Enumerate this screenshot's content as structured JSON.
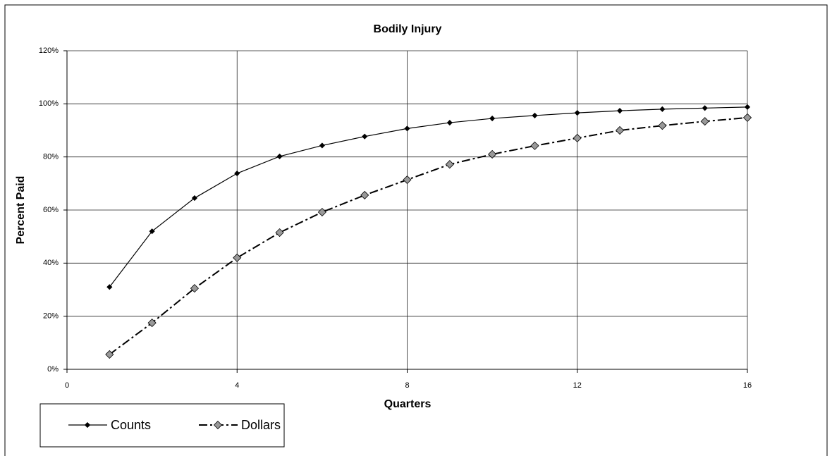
{
  "chart_data": {
    "type": "line",
    "title": "Bodily Injury",
    "y_label": "Percent Paid",
    "x_label": "Quarters",
    "x": [
      1,
      2,
      3,
      4,
      5,
      6,
      7,
      8,
      9,
      10,
      11,
      12,
      13,
      14,
      15,
      16
    ],
    "series": [
      {
        "name": "Counts",
        "color": "#000000",
        "marker_color": "#000000",
        "dash": "solid",
        "values": [
          31,
          52,
          64.5,
          73.8,
          80.2,
          84.3,
          87.7,
          90.7,
          92.9,
          94.5,
          95.6,
          96.6,
          97.4,
          98,
          98.4,
          98.8
        ]
      },
      {
        "name": "Dollars",
        "color": "#000000",
        "marker_color": "#999999",
        "dash": "dashdot",
        "values": [
          5.6,
          17.5,
          30.5,
          42,
          51.5,
          59.2,
          65.6,
          71.4,
          77.2,
          81,
          84.2,
          87.1,
          90,
          91.8,
          93.4,
          94.8
        ]
      }
    ],
    "xlim": [
      0,
      16
    ],
    "xticks": [
      0,
      4,
      8,
      12,
      16
    ],
    "ylim": [
      0,
      120
    ],
    "yticks": [
      {
        "value": 0,
        "label": "0%"
      },
      {
        "value": 20,
        "label": "20%"
      },
      {
        "value": 40,
        "label": "40%"
      },
      {
        "value": 60,
        "label": "60%"
      },
      {
        "value": 80,
        "label": "80%"
      },
      {
        "value": 100,
        "label": "100%"
      },
      {
        "value": 120,
        "label": "120%"
      }
    ],
    "grid": true,
    "legend": "bottom-left"
  }
}
